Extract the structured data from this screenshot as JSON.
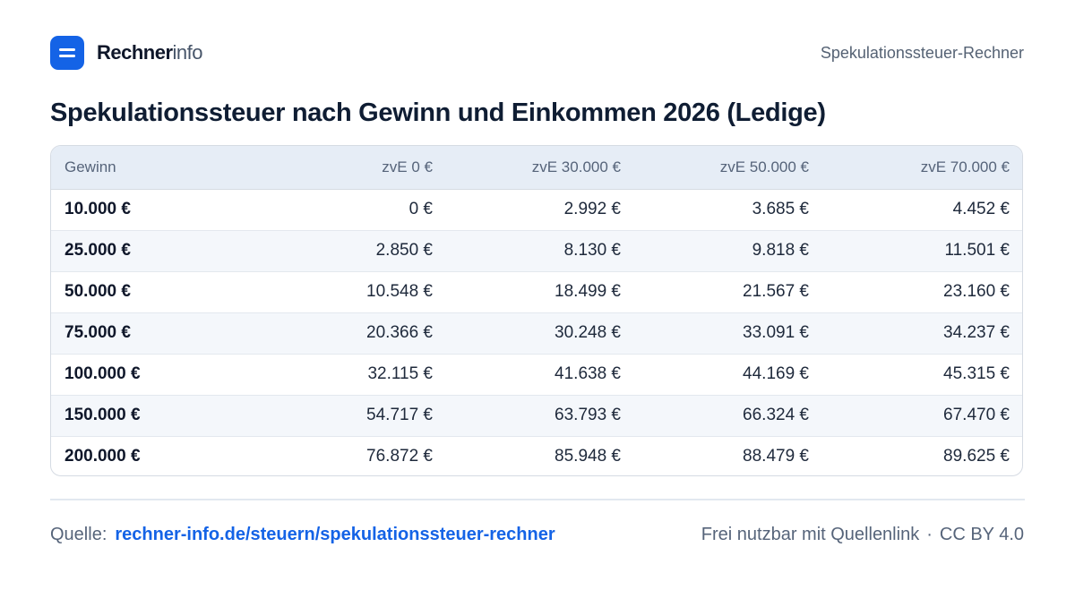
{
  "brand": {
    "name_strong": "Rechner",
    "name_light": "info",
    "logo_color": "#1463e6"
  },
  "header": {
    "right_label": "Spekulationssteuer-Rechner"
  },
  "title": "Spekulationssteuer nach Gewinn und Einkommen 2026 (Ledige)",
  "table": {
    "headers": [
      "Gewinn",
      "zvE 0 €",
      "zvE 30.000 €",
      "zvE 50.000 €",
      "zvE 70.000 €"
    ],
    "rows": [
      [
        "10.000 €",
        "0 €",
        "2.992 €",
        "3.685 €",
        "4.452 €"
      ],
      [
        "25.000 €",
        "2.850 €",
        "8.130 €",
        "9.818 €",
        "11.501 €"
      ],
      [
        "50.000 €",
        "10.548 €",
        "18.499 €",
        "21.567 €",
        "23.160 €"
      ],
      [
        "75.000 €",
        "20.366 €",
        "30.248 €",
        "33.091 €",
        "34.237 €"
      ],
      [
        "100.000 €",
        "32.115 €",
        "41.638 €",
        "44.169 €",
        "45.315 €"
      ],
      [
        "150.000 €",
        "54.717 €",
        "63.793 €",
        "66.324 €",
        "67.470 €"
      ],
      [
        "200.000 €",
        "76.872 €",
        "85.948 €",
        "88.479 €",
        "89.625 €"
      ]
    ]
  },
  "footer": {
    "source_label": "Quelle:",
    "source_link": "rechner-info.de/steuern/spekulationssteuer-rechner",
    "usage_note": "Frei nutzbar mit Quellenlink",
    "separator": "·",
    "license": "CC BY 4.0"
  },
  "colors": {
    "accent": "#1463e6",
    "header_row_bg": "#e6edf6",
    "zebra_bg": "#f4f7fb",
    "title_text": "#0f1d33"
  }
}
